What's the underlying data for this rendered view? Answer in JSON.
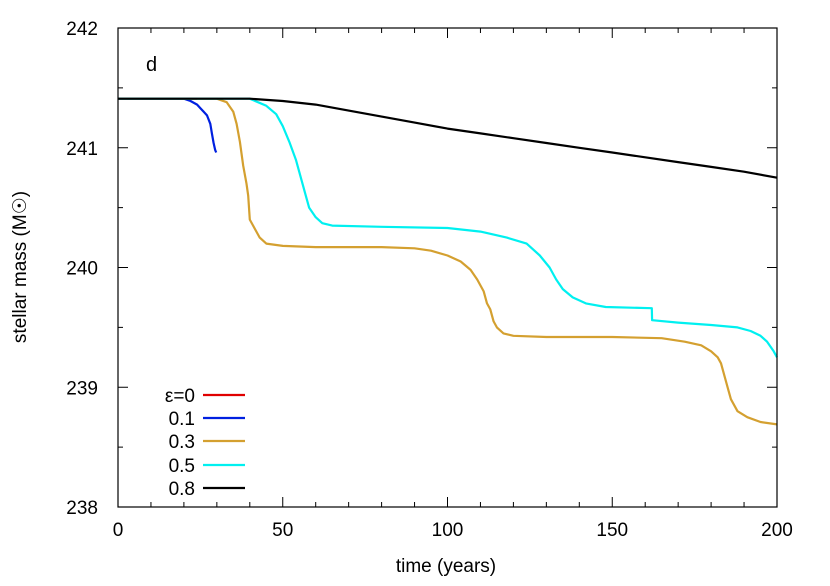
{
  "chart_data": {
    "type": "line",
    "title": "",
    "panel_label": "d",
    "xlabel": "time (years)",
    "ylabel": "stellar mass (M☉)",
    "xlim": [
      0,
      200
    ],
    "ylim": [
      238,
      242
    ],
    "x_ticks": [
      "0",
      "50",
      "100",
      "150",
      "200"
    ],
    "y_ticks": [
      "238",
      "239",
      "240",
      "241",
      "242"
    ],
    "grid": false,
    "legend_position": "bottom-left",
    "series": [
      {
        "name": "ε=0",
        "color": "#e00000",
        "points": [
          [
            0,
            241.41
          ],
          [
            10,
            241.41
          ],
          [
            20,
            241.41
          ],
          [
            24,
            241.41
          ]
        ]
      },
      {
        "name": "0.1",
        "color": "#0020e0",
        "points": [
          [
            0,
            241.41
          ],
          [
            20,
            241.41
          ],
          [
            22,
            241.39
          ],
          [
            24,
            241.36
          ],
          [
            25,
            241.33
          ],
          [
            26,
            241.3
          ],
          [
            27,
            241.27
          ],
          [
            28,
            241.2
          ],
          [
            28.5,
            241.12
          ],
          [
            29,
            241.04
          ],
          [
            29.5,
            240.98
          ],
          [
            29.8,
            240.96
          ]
        ]
      },
      {
        "name": "0.3",
        "color": "#d4a030",
        "points": [
          [
            0,
            241.41
          ],
          [
            30,
            241.41
          ],
          [
            33,
            241.38
          ],
          [
            35,
            241.3
          ],
          [
            36,
            241.2
          ],
          [
            37,
            241.05
          ],
          [
            38,
            240.85
          ],
          [
            39,
            240.7
          ],
          [
            39.5,
            240.6
          ],
          [
            40,
            240.4
          ],
          [
            41,
            240.35
          ],
          [
            42,
            240.3
          ],
          [
            43,
            240.25
          ],
          [
            45,
            240.2
          ],
          [
            50,
            240.18
          ],
          [
            60,
            240.17
          ],
          [
            80,
            240.17
          ],
          [
            90,
            240.16
          ],
          [
            95,
            240.14
          ],
          [
            100,
            240.1
          ],
          [
            104,
            240.05
          ],
          [
            107,
            239.98
          ],
          [
            109,
            239.9
          ],
          [
            111,
            239.8
          ],
          [
            112,
            239.7
          ],
          [
            113,
            239.65
          ],
          [
            114,
            239.55
          ],
          [
            115,
            239.5
          ],
          [
            117,
            239.45
          ],
          [
            120,
            239.43
          ],
          [
            130,
            239.42
          ],
          [
            150,
            239.42
          ],
          [
            165,
            239.41
          ],
          [
            172,
            239.38
          ],
          [
            177,
            239.35
          ],
          [
            180,
            239.3
          ],
          [
            182,
            239.25
          ],
          [
            183,
            239.2
          ],
          [
            184,
            239.1
          ],
          [
            185,
            239.0
          ],
          [
            186,
            238.9
          ],
          [
            188,
            238.8
          ],
          [
            191,
            238.75
          ],
          [
            195,
            238.71
          ],
          [
            200,
            238.69
          ]
        ]
      },
      {
        "name": "0.5",
        "color": "#00f0f0",
        "points": [
          [
            0,
            241.41
          ],
          [
            40,
            241.41
          ],
          [
            45,
            241.35
          ],
          [
            48,
            241.28
          ],
          [
            50,
            241.18
          ],
          [
            52,
            241.05
          ],
          [
            54,
            240.9
          ],
          [
            55,
            240.8
          ],
          [
            56,
            240.7
          ],
          [
            57,
            240.6
          ],
          [
            58,
            240.5
          ],
          [
            60,
            240.42
          ],
          [
            62,
            240.37
          ],
          [
            65,
            240.35
          ],
          [
            80,
            240.34
          ],
          [
            100,
            240.33
          ],
          [
            110,
            240.3
          ],
          [
            118,
            240.25
          ],
          [
            124,
            240.2
          ],
          [
            128,
            240.1
          ],
          [
            131,
            240.0
          ],
          [
            133,
            239.9
          ],
          [
            135,
            239.82
          ],
          [
            138,
            239.75
          ],
          [
            142,
            239.7
          ],
          [
            148,
            239.67
          ],
          [
            162,
            239.66
          ],
          [
            162.1,
            239.56
          ],
          [
            170,
            239.54
          ],
          [
            180,
            239.52
          ],
          [
            188,
            239.5
          ],
          [
            192,
            239.47
          ],
          [
            195,
            239.43
          ],
          [
            197,
            239.38
          ],
          [
            199,
            239.3
          ],
          [
            200,
            239.25
          ]
        ]
      },
      {
        "name": "0.8",
        "color": "#000000",
        "points": [
          [
            0,
            241.41
          ],
          [
            30,
            241.41
          ],
          [
            40,
            241.41
          ],
          [
            50,
            241.39
          ],
          [
            60,
            241.36
          ],
          [
            70,
            241.31
          ],
          [
            80,
            241.26
          ],
          [
            90,
            241.21
          ],
          [
            100,
            241.16
          ],
          [
            110,
            241.12
          ],
          [
            120,
            241.08
          ],
          [
            130,
            241.04
          ],
          [
            140,
            241.0
          ],
          [
            150,
            240.96
          ],
          [
            160,
            240.92
          ],
          [
            170,
            240.88
          ],
          [
            180,
            240.84
          ],
          [
            190,
            240.8
          ],
          [
            200,
            240.75
          ]
        ]
      }
    ]
  }
}
